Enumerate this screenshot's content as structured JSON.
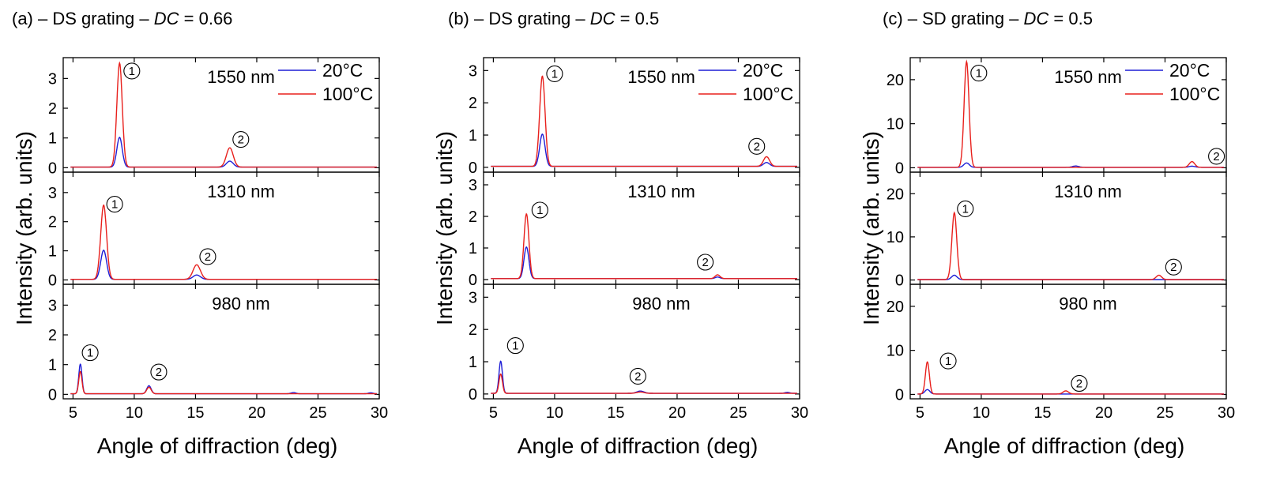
{
  "colors": {
    "t20": "#1f1fd6",
    "t100": "#e8201c",
    "axis": "#000000"
  },
  "chart_data": [
    {
      "type": "line",
      "title": "(a) – DS grating – ",
      "title_italic": "DC",
      "title_suffix": " = 0.66",
      "xlabel": "Angle of diffraction (deg)",
      "ylabel": "Intensity (arb. units)",
      "xlim": [
        4.2,
        30
      ],
      "xticks": [
        5,
        10,
        15,
        20,
        25,
        30
      ],
      "xtick_labels": [
        "5",
        "10",
        "15",
        "20",
        "25",
        "30"
      ],
      "legend": {
        "position": "top-right",
        "entries": [
          "20°C",
          "100°C"
        ]
      },
      "subplots": [
        {
          "wavelength": "1550 nm",
          "ylim": [
            -0.15,
            3.7
          ],
          "yticks": [
            0,
            1,
            2,
            3
          ],
          "ytick_labels": [
            "0",
            "1",
            "2",
            "3"
          ],
          "orders": [
            {
              "label": "1",
              "x": 9.8,
              "y": 3.25
            },
            {
              "label": "2",
              "x": 18.7,
              "y": 0.95
            }
          ],
          "series": [
            {
              "name": "20°C",
              "peaks": [
                {
                  "x": 8.8,
                  "y": 1.0,
                  "w": 0.22
                },
                {
                  "x": 17.8,
                  "y": 0.2,
                  "w": 0.28
                }
              ],
              "baseline": 0.02
            },
            {
              "name": "100°C",
              "peaks": [
                {
                  "x": 8.8,
                  "y": 3.5,
                  "w": 0.22
                },
                {
                  "x": 17.8,
                  "y": 0.65,
                  "w": 0.28
                }
              ],
              "baseline": 0.02
            }
          ]
        },
        {
          "wavelength": "1310 nm",
          "ylim": [
            -0.15,
            3.7
          ],
          "yticks": [
            0,
            1,
            2,
            3
          ],
          "ytick_labels": [
            "0",
            "1",
            "2",
            "3"
          ],
          "orders": [
            {
              "label": "1",
              "x": 8.4,
              "y": 2.6
            },
            {
              "label": "2",
              "x": 16.0,
              "y": 0.8
            }
          ],
          "series": [
            {
              "name": "20°C",
              "peaks": [
                {
                  "x": 7.5,
                  "y": 1.0,
                  "w": 0.24
                },
                {
                  "x": 15.1,
                  "y": 0.15,
                  "w": 0.3
                }
              ],
              "baseline": 0.02
            },
            {
              "name": "100°C",
              "peaks": [
                {
                  "x": 7.5,
                  "y": 2.55,
                  "w": 0.24
                },
                {
                  "x": 15.1,
                  "y": 0.5,
                  "w": 0.3
                }
              ],
              "baseline": 0.02
            }
          ]
        },
        {
          "wavelength": "980 nm",
          "ylim": [
            -0.15,
            3.7
          ],
          "yticks": [
            0,
            1,
            2,
            3
          ],
          "ytick_labels": [
            "0",
            "1",
            "2",
            "3"
          ],
          "orders": [
            {
              "label": "1",
              "x": 6.4,
              "y": 1.4
            },
            {
              "label": "2",
              "x": 12.0,
              "y": 0.75
            }
          ],
          "series": [
            {
              "name": "20°C",
              "peaks": [
                {
                  "x": 5.6,
                  "y": 1.0,
                  "w": 0.13
                },
                {
                  "x": 11.2,
                  "y": 0.27,
                  "w": 0.18
                },
                {
                  "x": 23.0,
                  "y": 0.04,
                  "w": 0.2
                },
                {
                  "x": 29.3,
                  "y": 0.03,
                  "w": 0.2
                }
              ],
              "baseline": 0.02
            },
            {
              "name": "100°C",
              "peaks": [
                {
                  "x": 5.6,
                  "y": 0.75,
                  "w": 0.13
                },
                {
                  "x": 11.2,
                  "y": 0.22,
                  "w": 0.18
                }
              ],
              "baseline": 0.02
            }
          ]
        }
      ]
    },
    {
      "type": "line",
      "title": "(b) – DS grating – ",
      "title_italic": "DC",
      "title_suffix": " = 0.5",
      "xlabel": "Angle of diffraction (deg)",
      "ylabel": "Intensity (arb. units)",
      "xlim": [
        4.2,
        30
      ],
      "xticks": [
        5,
        10,
        15,
        20,
        25,
        30
      ],
      "xtick_labels": [
        "5",
        "10",
        "15",
        "20",
        "25",
        "30"
      ],
      "legend": {
        "position": "top-right",
        "entries": [
          "20°C",
          "100°C"
        ]
      },
      "subplots": [
        {
          "wavelength": "1550 nm",
          "ylim": [
            -0.15,
            3.4
          ],
          "yticks": [
            0,
            1,
            2,
            3
          ],
          "ytick_labels": [
            "0",
            "1",
            "2",
            "3"
          ],
          "orders": [
            {
              "label": "1",
              "x": 10.0,
              "y": 2.9
            },
            {
              "label": "2",
              "x": 26.5,
              "y": 0.65
            }
          ],
          "series": [
            {
              "name": "20°C",
              "peaks": [
                {
                  "x": 9.0,
                  "y": 1.0,
                  "w": 0.22
                },
                {
                  "x": 27.3,
                  "y": 0.12,
                  "w": 0.25
                }
              ],
              "baseline": 0.03
            },
            {
              "name": "100°C",
              "peaks": [
                {
                  "x": 9.0,
                  "y": 2.8,
                  "w": 0.22
                },
                {
                  "x": 27.3,
                  "y": 0.3,
                  "w": 0.25
                }
              ],
              "baseline": 0.03
            }
          ]
        },
        {
          "wavelength": "1310 nm",
          "ylim": [
            -0.15,
            3.4
          ],
          "yticks": [
            0,
            1,
            2,
            3
          ],
          "ytick_labels": [
            "0",
            "1",
            "2",
            "3"
          ],
          "orders": [
            {
              "label": "1",
              "x": 8.8,
              "y": 2.2
            },
            {
              "label": "2",
              "x": 22.3,
              "y": 0.55
            }
          ],
          "series": [
            {
              "name": "20°C",
              "peaks": [
                {
                  "x": 7.7,
                  "y": 1.0,
                  "w": 0.2
                },
                {
                  "x": 23.3,
                  "y": 0.05,
                  "w": 0.2
                }
              ],
              "baseline": 0.03
            },
            {
              "name": "100°C",
              "peaks": [
                {
                  "x": 7.7,
                  "y": 2.05,
                  "w": 0.2
                },
                {
                  "x": 23.3,
                  "y": 0.12,
                  "w": 0.2
                }
              ],
              "baseline": 0.03
            }
          ]
        },
        {
          "wavelength": "980 nm",
          "ylim": [
            -0.15,
            3.4
          ],
          "yticks": [
            0,
            1,
            2,
            3
          ],
          "ytick_labels": [
            "0",
            "1",
            "2",
            "3"
          ],
          "orders": [
            {
              "label": "1",
              "x": 6.8,
              "y": 1.5
            },
            {
              "label": "2",
              "x": 16.8,
              "y": 0.55
            }
          ],
          "series": [
            {
              "name": "20°C",
              "peaks": [
                {
                  "x": 5.6,
                  "y": 1.0,
                  "w": 0.14
                },
                {
                  "x": 17.0,
                  "y": 0.07,
                  "w": 0.3
                },
                {
                  "x": 29.0,
                  "y": 0.03,
                  "w": 0.2
                }
              ],
              "baseline": 0.02
            },
            {
              "name": "100°C",
              "peaks": [
                {
                  "x": 5.6,
                  "y": 0.6,
                  "w": 0.14
                },
                {
                  "x": 17.0,
                  "y": 0.04,
                  "w": 0.3
                }
              ],
              "baseline": 0.02
            }
          ]
        }
      ]
    },
    {
      "type": "line",
      "title": "(c) – SD grating – ",
      "title_italic": "DC",
      "title_suffix": " = 0.5",
      "xlabel": "Angle of diffraction (deg)",
      "ylabel": "Intensity (arb. units)",
      "xlim": [
        4.2,
        30
      ],
      "xticks": [
        5,
        10,
        15,
        20,
        25,
        30
      ],
      "xtick_labels": [
        "5",
        "10",
        "15",
        "20",
        "25",
        "30"
      ],
      "legend": {
        "position": "top-right",
        "entries": [
          "20°C",
          "100°C"
        ]
      },
      "subplots": [
        {
          "wavelength": "1550 nm",
          "ylim": [
            -1,
            25
          ],
          "yticks": [
            0,
            10,
            20
          ],
          "ytick_labels": [
            "0",
            "10",
            "20"
          ],
          "orders": [
            {
              "label": "1",
              "x": 9.8,
              "y": 21.5
            },
            {
              "label": "2",
              "x": 29.2,
              "y": 2.6
            }
          ],
          "series": [
            {
              "name": "20°C",
              "peaks": [
                {
                  "x": 8.8,
                  "y": 1.0,
                  "w": 0.22
                },
                {
                  "x": 17.7,
                  "y": 0.3,
                  "w": 0.25
                },
                {
                  "x": 27.2,
                  "y": 0.25,
                  "w": 0.25
                }
              ],
              "baseline": 0.1
            },
            {
              "name": "100°C",
              "peaks": [
                {
                  "x": 8.8,
                  "y": 24.0,
                  "w": 0.2
                },
                {
                  "x": 27.2,
                  "y": 1.3,
                  "w": 0.22
                }
              ],
              "baseline": 0.1
            }
          ]
        },
        {
          "wavelength": "1310 nm",
          "ylim": [
            -1,
            25
          ],
          "yticks": [
            0,
            10,
            20
          ],
          "ytick_labels": [
            "0",
            "10",
            "20"
          ],
          "orders": [
            {
              "label": "1",
              "x": 8.7,
              "y": 16.5
            },
            {
              "label": "2",
              "x": 25.7,
              "y": 3.0
            }
          ],
          "series": [
            {
              "name": "20°C",
              "peaks": [
                {
                  "x": 7.8,
                  "y": 1.0,
                  "w": 0.22
                }
              ],
              "baseline": 0.1
            },
            {
              "name": "100°C",
              "peaks": [
                {
                  "x": 7.8,
                  "y": 15.5,
                  "w": 0.2
                },
                {
                  "x": 24.5,
                  "y": 1.0,
                  "w": 0.22
                }
              ],
              "baseline": 0.1
            }
          ]
        },
        {
          "wavelength": "980 nm",
          "ylim": [
            -1,
            25
          ],
          "yticks": [
            0,
            10,
            20
          ],
          "ytick_labels": [
            "0",
            "10",
            "20"
          ],
          "orders": [
            {
              "label": "1",
              "x": 7.3,
              "y": 7.6
            },
            {
              "label": "2",
              "x": 18.0,
              "y": 2.5
            }
          ],
          "series": [
            {
              "name": "20°C",
              "peaks": [
                {
                  "x": 5.6,
                  "y": 1.0,
                  "w": 0.2
                }
              ],
              "baseline": 0.1
            },
            {
              "name": "100°C",
              "peaks": [
                {
                  "x": 5.6,
                  "y": 7.3,
                  "w": 0.16
                },
                {
                  "x": 16.9,
                  "y": 0.7,
                  "w": 0.22
                }
              ],
              "baseline": 0.1
            }
          ]
        }
      ]
    }
  ]
}
